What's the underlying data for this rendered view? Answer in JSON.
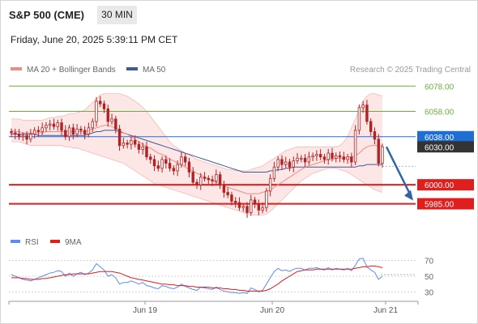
{
  "header": {
    "title": "S&P 500 (CME)",
    "timeframe": "30 MIN",
    "datetime": "Friday, June 20, 2025 5:39:11 PM CET"
  },
  "legend": {
    "ma20_label": "MA 20 + Bollinger Bands",
    "ma50_label": "MA 50",
    "copyright": "Research © 2025 Trading Central",
    "rsi_label": "RSI",
    "ma9_label": "9MA"
  },
  "colors": {
    "ma20": "#f28b82",
    "bollinger_fill": "#fde3e3",
    "ma50": "#3d5a99",
    "candle": "#b22222",
    "green_levels": "#6aaf3d",
    "blue_level": "#1f6ed4",
    "red_levels": "#e01e1e",
    "current_price": "#333333",
    "forecast_arrow": "#2f65a8",
    "rsi": "#5b8def",
    "rsi_ma": "#e01e1e"
  },
  "chart_data": [
    {
      "type": "candlestick",
      "title": "",
      "ylim": [
        5970,
        6082
      ],
      "x_tick_labels": [
        "Jun 19",
        "Jun 20",
        "Jun 21"
      ],
      "levels": [
        {
          "value": 6078,
          "label": "6078.00",
          "style": "resistance"
        },
        {
          "value": 6058,
          "label": "6058.00",
          "style": "resistance"
        },
        {
          "value": 6038,
          "label": "6038.00",
          "style": "pivot"
        },
        {
          "value": 6000,
          "label": "6000.00",
          "style": "support"
        },
        {
          "value": 5985,
          "label": "5985.00",
          "style": "support"
        }
      ],
      "current_price": {
        "value": 6030,
        "label": "6030.00"
      },
      "forecast": {
        "from": 6030,
        "to": 5985,
        "direction": "down"
      },
      "close": [
        6041,
        6040,
        6038,
        6039,
        6036,
        6040,
        6043,
        6042,
        6045,
        6047,
        6048,
        6046,
        6049,
        6043,
        6038,
        6045,
        6040,
        6044,
        6043,
        6040,
        6045,
        6050,
        6066,
        6064,
        6060,
        6050,
        6052,
        6044,
        6031,
        6033,
        6032,
        6035,
        6032,
        6028,
        6030,
        6022,
        6020,
        6015,
        6013,
        6020,
        6017,
        6013,
        6011,
        6016,
        6022,
        6018,
        6010,
        6002,
        6000,
        6006,
        6005,
        6004,
        6003,
        6008,
        6000,
        5994,
        5992,
        5987,
        5986,
        5982,
        5983,
        5978,
        5988,
        5985,
        5980,
        5982,
        5995,
        6005,
        6014,
        6020,
        6016,
        6018,
        6014,
        6019,
        6021,
        6021,
        6018,
        6022,
        6023,
        6024,
        6022,
        6020,
        6025,
        6021,
        6023,
        6022,
        6020,
        6022,
        6018,
        6043,
        6061,
        6063,
        6050,
        6042,
        6036,
        6017,
        6030
      ],
      "ma20": [
        6043,
        6042,
        6042,
        6041,
        6041,
        6041,
        6041,
        6041,
        6041,
        6042,
        6042,
        6042,
        6042,
        6042,
        6042,
        6042,
        6042,
        6042,
        6042,
        6042,
        6043,
        6044,
        6045,
        6046,
        6047,
        6047,
        6046,
        6045,
        6043,
        6041,
        6040,
        6038,
        6036,
        6034,
        6032,
        6030,
        6029,
        6027,
        6025,
        6024,
        6022,
        6020,
        6019,
        6017,
        6016,
        6014,
        6012,
        6011,
        6009,
        6008,
        6006,
        6005,
        6003,
        6002,
        6001,
        5999,
        5998,
        5997,
        5996,
        5995,
        5994,
        5993,
        5993,
        5993,
        5993,
        5994,
        5995,
        5996,
        5998,
        6000,
        6002,
        6004,
        6006,
        6008,
        6010,
        6012,
        6014,
        6015,
        6016,
        6017,
        6018,
        6019,
        6020,
        6020,
        6021,
        6021,
        6021,
        6022,
        6022,
        6023,
        6025,
        6028,
        6030,
        6031,
        6031,
        6031,
        6031
      ],
      "bollinger_upper": [
        6052,
        6052,
        6052,
        6051,
        6051,
        6051,
        6051,
        6051,
        6051,
        6052,
        6053,
        6053,
        6054,
        6054,
        6055,
        6056,
        6056,
        6057,
        6058,
        6059,
        6062,
        6065,
        6068,
        6071,
        6072,
        6072,
        6072,
        6072,
        6072,
        6071,
        6070,
        6068,
        6066,
        6064,
        6061,
        6058,
        6054,
        6050,
        6046,
        6042,
        6038,
        6034,
        6031,
        6029,
        6027,
        6025,
        6024,
        6022,
        6020,
        6019,
        6018,
        6017,
        6016,
        6015,
        6014,
        6013,
        6012,
        6012,
        6011,
        6011,
        6011,
        6011,
        6012,
        6013,
        6014,
        6015,
        6017,
        6019,
        6021,
        6023,
        6025,
        6027,
        6028,
        6029,
        6030,
        6030,
        6030,
        6030,
        6030,
        6030,
        6030,
        6030,
        6030,
        6030,
        6030,
        6031,
        6034,
        6038,
        6045,
        6052,
        6060,
        6066,
        6070,
        6072,
        6072,
        6071,
        6070
      ],
      "bollinger_lower": [
        6034,
        6034,
        6034,
        6033,
        6032,
        6031,
        6031,
        6031,
        6031,
        6031,
        6031,
        6031,
        6031,
        6031,
        6030,
        6030,
        6029,
        6029,
        6028,
        6027,
        6026,
        6025,
        6024,
        6023,
        6022,
        6021,
        6020,
        6019,
        6018,
        6017,
        6015,
        6013,
        6011,
        6009,
        6007,
        6005,
        6003,
        6001,
        6000,
        5999,
        5998,
        5997,
        5996,
        5995,
        5994,
        5993,
        5992,
        5991,
        5990,
        5989,
        5988,
        5987,
        5986,
        5985,
        5984,
        5983,
        5982,
        5981,
        5980,
        5979,
        5978,
        5977,
        5976,
        5976,
        5976,
        5976,
        5977,
        5979,
        5982,
        5985,
        5988,
        5991,
        5994,
        5997,
        6000,
        6003,
        6005,
        6007,
        6009,
        6010,
        6011,
        6012,
        6013,
        6013,
        6013,
        6012,
        6011,
        6010,
        6008,
        6006,
        6004,
        6002,
        6000,
        5998,
        5996,
        5995,
        5994
      ],
      "ma50": [
        6040,
        6040,
        6040,
        6040,
        6040,
        6040,
        6040,
        6039,
        6039,
        6039,
        6039,
        6039,
        6039,
        6039,
        6039,
        6039,
        6039,
        6039,
        6039,
        6039,
        6040,
        6041,
        6042,
        6042,
        6043,
        6043,
        6043,
        6043,
        6042,
        6041,
        6040,
        6039,
        6038,
        6037,
        6036,
        6035,
        6034,
        6033,
        6032,
        6031,
        6030,
        6029,
        6028,
        6027,
        6026,
        6025,
        6024,
        6023,
        6022,
        6021,
        6020,
        6019,
        6018,
        6017,
        6016,
        6015,
        6014,
        6013,
        6012,
        6011,
        6010,
        6010,
        6010,
        6010,
        6010,
        6010,
        6010,
        6011,
        6011,
        6012,
        6012,
        6013,
        6013,
        6014,
        6014,
        6014,
        6014,
        6014,
        6014,
        6014,
        6014,
        6014,
        6014,
        6014,
        6014,
        6014,
        6014,
        6014,
        6014,
        6014,
        6015,
        6015,
        6016,
        6016,
        6016,
        6016,
        6016
      ]
    },
    {
      "type": "line",
      "title": "",
      "ylim": [
        20,
        80
      ],
      "y_tick_labels": [
        "70",
        "50",
        "30"
      ],
      "series": [
        {
          "name": "RSI",
          "values": [
            52,
            50,
            48,
            46,
            45,
            44,
            46,
            48,
            50,
            52,
            54,
            55,
            57,
            56,
            50,
            54,
            50,
            53,
            55,
            52,
            54,
            58,
            66,
            62,
            58,
            50,
            52,
            48,
            40,
            42,
            42,
            44,
            42,
            40,
            42,
            38,
            37,
            35,
            34,
            38,
            37,
            35,
            34,
            36,
            40,
            37,
            35,
            33,
            32,
            36,
            35,
            34,
            33,
            36,
            33,
            31,
            30,
            29,
            29,
            28,
            29,
            28,
            35,
            33,
            30,
            32,
            40,
            48,
            56,
            60,
            57,
            58,
            56,
            59,
            60,
            60,
            58,
            60,
            60,
            61,
            59,
            58,
            61,
            58,
            60,
            59,
            58,
            60,
            57,
            64,
            72,
            73,
            62,
            58,
            55,
            46,
            50
          ]
        },
        {
          "name": "9MA",
          "values": [
            48,
            48,
            48,
            47,
            47,
            46,
            46,
            46,
            47,
            47,
            48,
            49,
            50,
            51,
            52,
            52,
            53,
            53,
            53,
            53,
            53,
            54,
            55,
            56,
            56,
            56,
            56,
            55,
            54,
            52,
            50,
            48,
            47,
            46,
            45,
            44,
            43,
            42,
            41,
            40,
            40,
            39,
            39,
            38,
            38,
            38,
            37,
            37,
            36,
            36,
            36,
            36,
            35,
            35,
            35,
            34,
            34,
            33,
            33,
            32,
            32,
            31,
            31,
            31,
            31,
            31,
            32,
            34,
            37,
            40,
            44,
            47,
            50,
            53,
            56,
            57,
            58,
            58,
            58,
            59,
            59,
            59,
            59,
            59,
            59,
            59,
            59,
            59,
            59,
            60,
            61,
            62,
            62,
            63,
            63,
            62,
            61
          ]
        }
      ]
    }
  ]
}
